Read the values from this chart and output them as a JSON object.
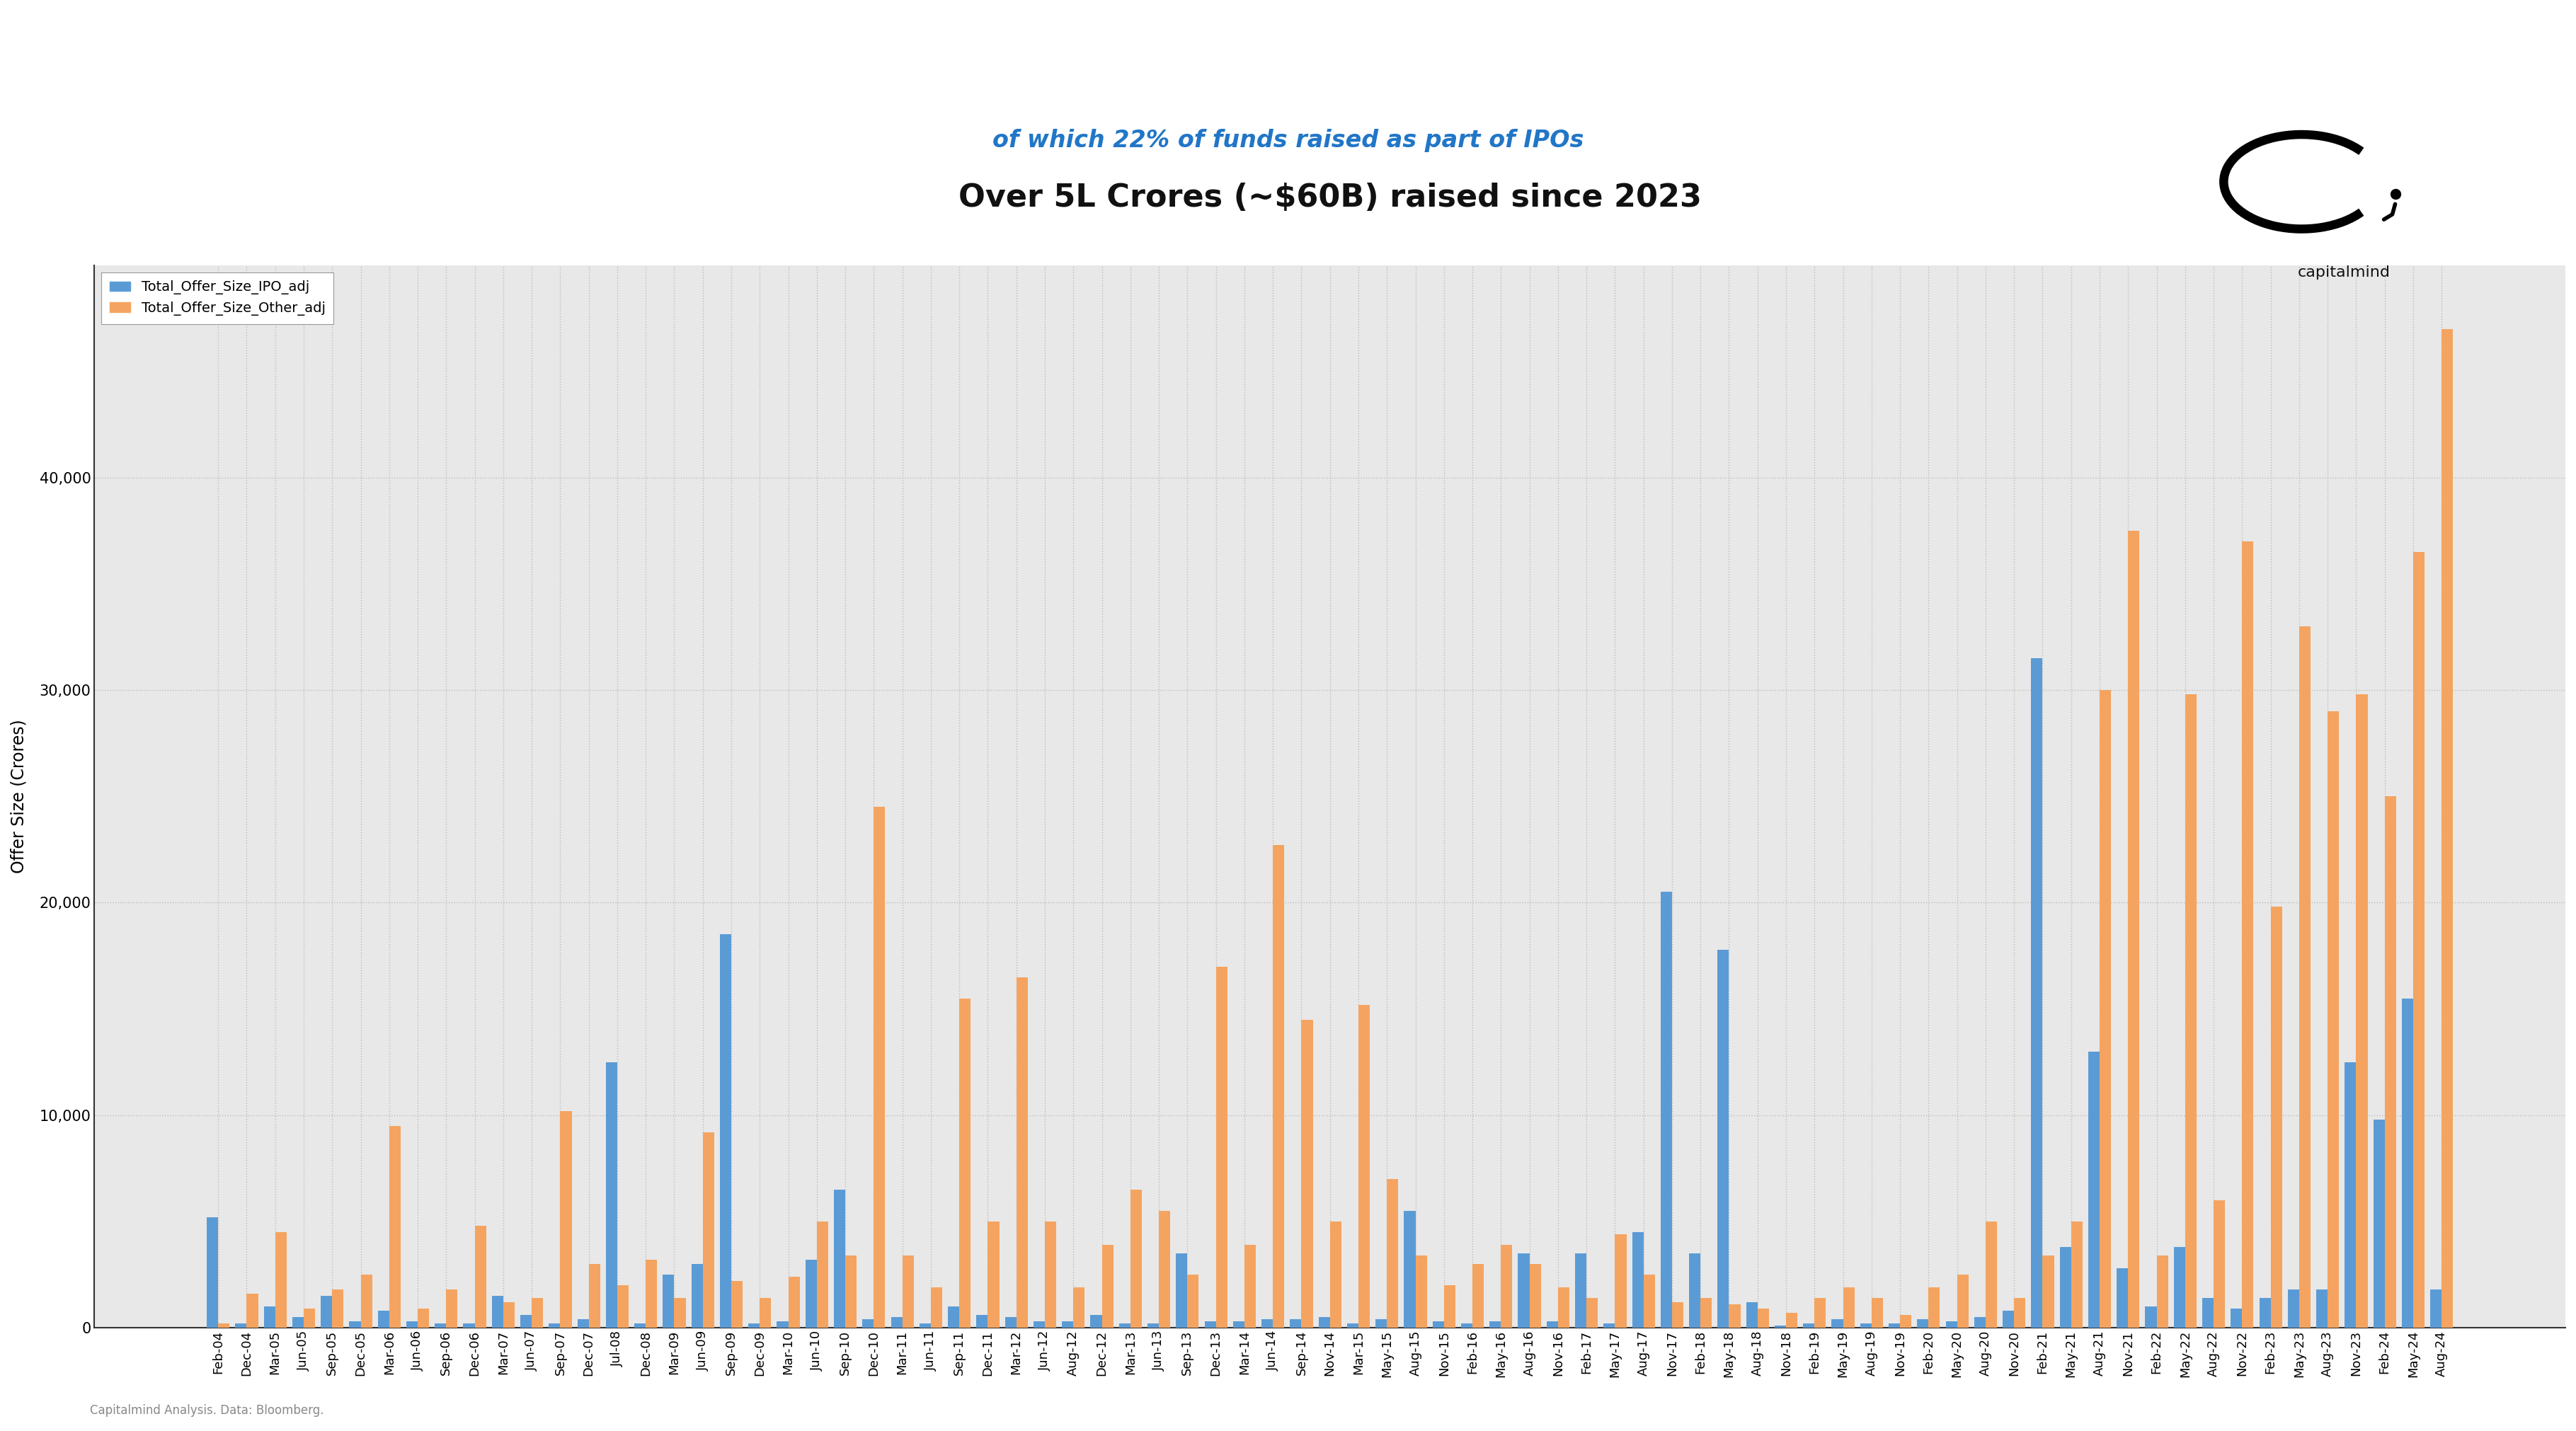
{
  "title": "Over 5L Crores (~$60B) raised since 2023",
  "subtitle": "of which 22% of funds raised as part of IPOs",
  "ylabel": "Offer Size (Crores)",
  "footnote": "Capitalmind Analysis. Data: Bloomberg.",
  "legend_ipo": "Total_Offer_Size_IPO_adj",
  "legend_other": "Total_Offer_Size_Other_adj",
  "color_ipo": "#5B9BD5",
  "color_other": "#F4A460",
  "subtitle_color": "#2176C7",
  "background_color": "#FFFFFF",
  "plot_bg_color": "#E8E8E8",
  "grid_color": "#BBBBBB",
  "categories": [
    "Feb-04",
    "Dec-04",
    "Mar-05",
    "Jun-05",
    "Sep-05",
    "Dec-05",
    "Mar-06",
    "Jun-06",
    "Sep-06",
    "Dec-06",
    "Mar-07",
    "Jun-07",
    "Sep-07",
    "Dec-07",
    "Jul-08",
    "Dec-08",
    "Mar-09",
    "Jun-09",
    "Sep-09",
    "Dec-09",
    "Mar-10",
    "Jun-10",
    "Sep-10",
    "Dec-10",
    "Mar-11",
    "Jun-11",
    "Sep-11",
    "Dec-11",
    "Mar-12",
    "Jun-12",
    "Aug-12",
    "Dec-12",
    "Mar-13",
    "Jun-13",
    "Sep-13",
    "Dec-13",
    "Mar-14",
    "Jun-14",
    "Sep-14",
    "Nov-14",
    "Mar-15",
    "May-15",
    "Aug-15",
    "Nov-15",
    "Feb-16",
    "May-16",
    "Aug-16",
    "Nov-16",
    "Feb-17",
    "May-17",
    "Aug-17",
    "Nov-17",
    "Feb-18",
    "May-18",
    "Aug-18",
    "Nov-18",
    "Feb-19",
    "May-19",
    "Aug-19",
    "Nov-19",
    "Feb-20",
    "May-20",
    "Aug-20",
    "Nov-20",
    "Feb-21",
    "May-21",
    "Aug-21",
    "Nov-21",
    "Feb-22",
    "May-22",
    "Aug-22",
    "Nov-22",
    "Feb-23",
    "May-23",
    "Aug-23",
    "Nov-23",
    "Feb-24",
    "May-24",
    "Aug-24"
  ],
  "ipo_values": [
    5200,
    200,
    1000,
    500,
    1500,
    300,
    800,
    300,
    200,
    200,
    1500,
    600,
    200,
    400,
    12500,
    200,
    2500,
    3000,
    18500,
    200,
    300,
    3200,
    6500,
    400,
    500,
    200,
    1000,
    600,
    500,
    300,
    300,
    600,
    200,
    200,
    3500,
    300,
    300,
    400,
    400,
    500,
    200,
    400,
    5500,
    300,
    200,
    300,
    3500,
    300,
    3500,
    200,
    4500,
    20500,
    3500,
    17800,
    1200,
    100,
    200,
    400,
    200,
    200,
    400,
    300,
    500,
    800,
    31500,
    3800,
    13000,
    2800,
    1000,
    3800,
    1400,
    900,
    1400,
    1800,
    1800,
    12500,
    9800,
    15500,
    1800
  ],
  "other_values": [
    200,
    1600,
    4500,
    900,
    1800,
    2500,
    9500,
    900,
    1800,
    4800,
    1200,
    1400,
    10200,
    3000,
    2000,
    3200,
    1400,
    9200,
    2200,
    1400,
    2400,
    5000,
    3400,
    24500,
    3400,
    1900,
    15500,
    5000,
    16500,
    5000,
    1900,
    3900,
    6500,
    5500,
    2500,
    17000,
    3900,
    22700,
    14500,
    5000,
    15200,
    7000,
    3400,
    2000,
    3000,
    3900,
    3000,
    1900,
    1400,
    4400,
    2500,
    1200,
    1400,
    1100,
    900,
    700,
    1400,
    1900,
    1400,
    600,
    1900,
    2500,
    5000,
    1400,
    3400,
    5000,
    30000,
    37500,
    3400,
    29800,
    6000,
    37000,
    19800,
    33000,
    29000,
    29800,
    25000,
    36500,
    47000
  ],
  "ylim": [
    0,
    50000
  ],
  "yticks": [
    0,
    10000,
    20000,
    30000,
    40000
  ]
}
